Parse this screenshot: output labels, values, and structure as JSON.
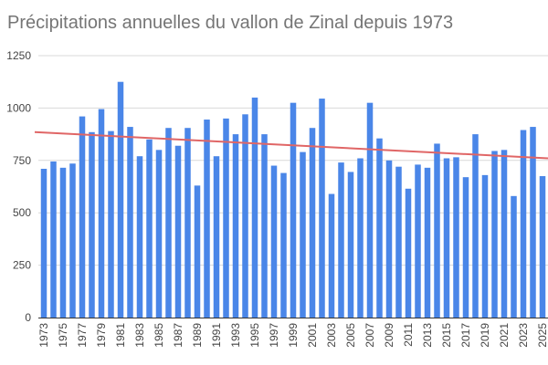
{
  "chart_data": {
    "type": "bar",
    "title": "Précipitations annuelles du vallon de Zinal depuis 1973",
    "xlabel": "",
    "ylabel": "",
    "ylim": [
      0,
      1250
    ],
    "yticks": [
      0,
      250,
      500,
      750,
      1000,
      1250
    ],
    "grid": true,
    "legend": "none",
    "bar_color": "#4a86e8",
    "trendline_color": "#e06666",
    "categories": [
      "1973",
      "1974",
      "1975",
      "1976",
      "1977",
      "1978",
      "1979",
      "1980",
      "1981",
      "1982",
      "1983",
      "1984",
      "1985",
      "1986",
      "1987",
      "1988",
      "1989",
      "1990",
      "1991",
      "1992",
      "1993",
      "1994",
      "1995",
      "1996",
      "1997",
      "1998",
      "1999",
      "2000",
      "2001",
      "2002",
      "2003",
      "2004",
      "2005",
      "2006",
      "2007",
      "2008",
      "2009",
      "2010",
      "2011",
      "2012",
      "2013",
      "2014",
      "2015",
      "2016",
      "2017",
      "2018",
      "2019",
      "2020",
      "2021",
      "2022",
      "2023",
      "2024",
      "2025"
    ],
    "xtick_labels": [
      "1973",
      "1975",
      "1977",
      "1979",
      "1981",
      "1983",
      "1985",
      "1987",
      "1989",
      "1991",
      "1993",
      "1995",
      "1997",
      "1999",
      "2001",
      "2003",
      "2005",
      "2007",
      "2009",
      "2011",
      "2013",
      "2015",
      "2017",
      "2019",
      "2021",
      "2023",
      "2025"
    ],
    "values": [
      710,
      745,
      715,
      735,
      960,
      885,
      995,
      890,
      1125,
      910,
      770,
      850,
      800,
      905,
      820,
      905,
      630,
      945,
      770,
      950,
      875,
      970,
      1050,
      875,
      725,
      690,
      1025,
      790,
      905,
      1045,
      590,
      740,
      695,
      760,
      1025,
      855,
      750,
      720,
      615,
      730,
      715,
      830,
      760,
      765,
      670,
      875,
      680,
      795,
      800,
      580,
      895,
      910,
      675
    ],
    "trendline": {
      "start": 885,
      "end": 760
    }
  }
}
